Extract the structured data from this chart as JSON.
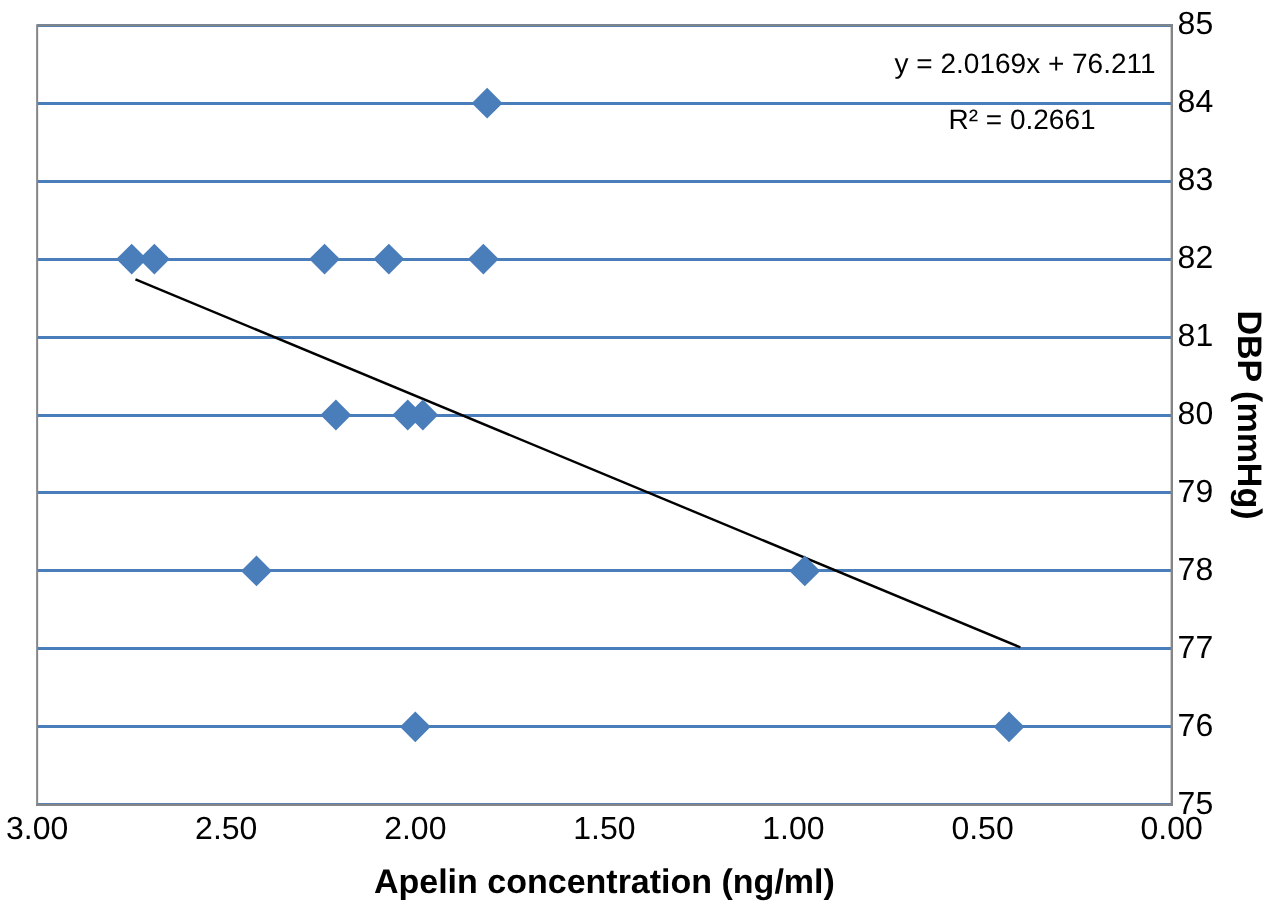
{
  "chart_data": {
    "type": "scatter",
    "xlabel": "Apelin concentration (ng/ml)",
    "ylabel": "DBP (mmHg)",
    "xlim": [
      3,
      0
    ],
    "xticks": [
      {
        "value": 3,
        "label": "3.00"
      },
      {
        "value": 2.5,
        "label": "2.50"
      },
      {
        "value": 2,
        "label": "2.00"
      },
      {
        "value": 1.5,
        "label": "1.50"
      },
      {
        "value": 1,
        "label": "1.00"
      },
      {
        "value": 0.5,
        "label": "0.50"
      },
      {
        "value": 0,
        "label": "0.00"
      }
    ],
    "ylim": [
      75,
      85
    ],
    "yticks": [
      75,
      76,
      77,
      78,
      79,
      80,
      81,
      82,
      83,
      84,
      85
    ],
    "grid": "y",
    "marker": "diamond",
    "series": [
      {
        "color": "#4a7ebb",
        "x": [
          1.81,
          2.75,
          2.69,
          2.24,
          2.07,
          1.82,
          2.21,
          2.02,
          1.98,
          2.42,
          0.97,
          2.0,
          0.43
        ],
        "values": [
          84,
          82,
          82,
          82,
          82,
          82,
          80,
          80,
          80,
          78,
          78,
          76,
          76
        ]
      },
      {
        "type": "line",
        "color": "#000000",
        "marker": "none",
        "x": [
          2.74,
          0.4
        ],
        "values": [
          81.74,
          77.02
        ]
      }
    ],
    "annotations": [
      "y = 2.0169x + 76.211",
      "R² = 0.2661"
    ]
  }
}
